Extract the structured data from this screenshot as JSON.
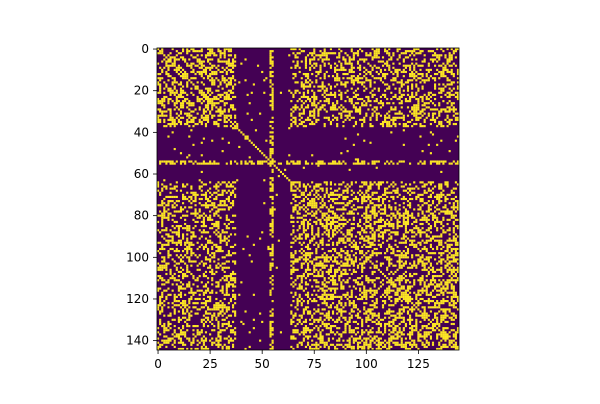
{
  "chart_data": {
    "type": "heatmap",
    "title": "",
    "xlabel": "",
    "ylabel": "",
    "size": 145,
    "xlim": [
      -0.5,
      144.5
    ],
    "ylim": [
      144.5,
      -0.5
    ],
    "x_ticks": [
      0,
      25,
      50,
      75,
      100,
      125
    ],
    "y_ticks": [
      0,
      20,
      40,
      60,
      80,
      100,
      120,
      140
    ],
    "colormap": {
      "zero": "#440154",
      "one": "#fde725"
    },
    "grid": false,
    "legend": "none",
    "symmetric": true,
    "diagonal_value": 1,
    "hub_rows_all_zero": [
      38,
      39,
      40,
      41,
      42,
      43,
      44,
      45,
      46,
      47,
      48,
      49,
      50,
      51,
      52,
      53,
      56,
      57,
      58,
      59,
      60,
      61,
      62,
      63
    ],
    "description_of_structure": "binary symmetric adjacency matrix; two dense blocks (indices 0-37 and 64-144) with near-empty band around indices 38-63 except sparse links"
  }
}
